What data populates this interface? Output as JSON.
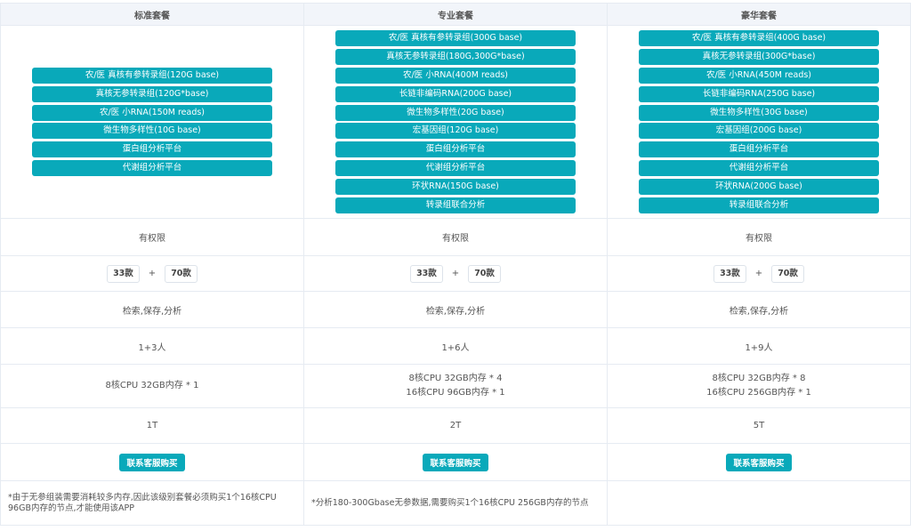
{
  "plans": [
    {
      "name": "标准套餐",
      "services": [
        "农/医 真核有参转录组(120G base)",
        "真核无参转录组(120G*base)",
        "农/医 小RNA(150M reads)",
        "微生物多样性(10G base)",
        "蛋白组分析平台",
        "代谢组分析平台"
      ],
      "permission": "有权限",
      "tools_a": "33款",
      "tools_b": "70款",
      "functions": "检索,保存,分析",
      "users": "1+3人",
      "compute": [
        "8核CPU 32GB内存 * 1"
      ],
      "storage": "1T",
      "buy_label": "联系客服购买",
      "note": "*由于无参组装需要消耗较多内存,因此该级别套餐必须购买1个16核CPU 96GB内存的节点,才能使用该APP"
    },
    {
      "name": "专业套餐",
      "services": [
        "农/医 真核有参转录组(300G base)",
        "真核无参转录组(180G,300G*base)",
        "农/医 小RNA(400M reads)",
        "长链非编码RNA(200G base)",
        "微生物多样性(20G base)",
        "宏基因组(120G base)",
        "蛋白组分析平台",
        "代谢组分析平台",
        "环状RNA(150G base)",
        "转录组联合分析"
      ],
      "permission": "有权限",
      "tools_a": "33款",
      "tools_b": "70款",
      "functions": "检索,保存,分析",
      "users": "1+6人",
      "compute": [
        "8核CPU 32GB内存 * 4",
        "16核CPU 96GB内存 * 1"
      ],
      "storage": "2T",
      "buy_label": "联系客服购买",
      "note": "*分析180-300Gbase无参数据,需要购买1个16核CPU 256GB内存的节点"
    },
    {
      "name": "豪华套餐",
      "services": [
        "农/医 真核有参转录组(400G base)",
        "真核无参转录组(300G*base)",
        "农/医 小RNA(450M reads)",
        "长链非编码RNA(250G base)",
        "微生物多样性(30G base)",
        "宏基因组(200G base)",
        "蛋白组分析平台",
        "代谢组分析平台",
        "环状RNA(200G base)",
        "转录组联合分析"
      ],
      "permission": "有权限",
      "tools_a": "33款",
      "tools_b": "70款",
      "functions": "检索,保存,分析",
      "users": "1+9人",
      "compute": [
        "8核CPU 32GB内存 * 8",
        "16核CPU 256GB内存 * 1"
      ],
      "storage": "5T",
      "buy_label": "联系客服购买",
      "note": ""
    }
  ],
  "plus": "+",
  "colors": {
    "accent": "#09a9ba",
    "header_bg": "#f2f5fa"
  }
}
